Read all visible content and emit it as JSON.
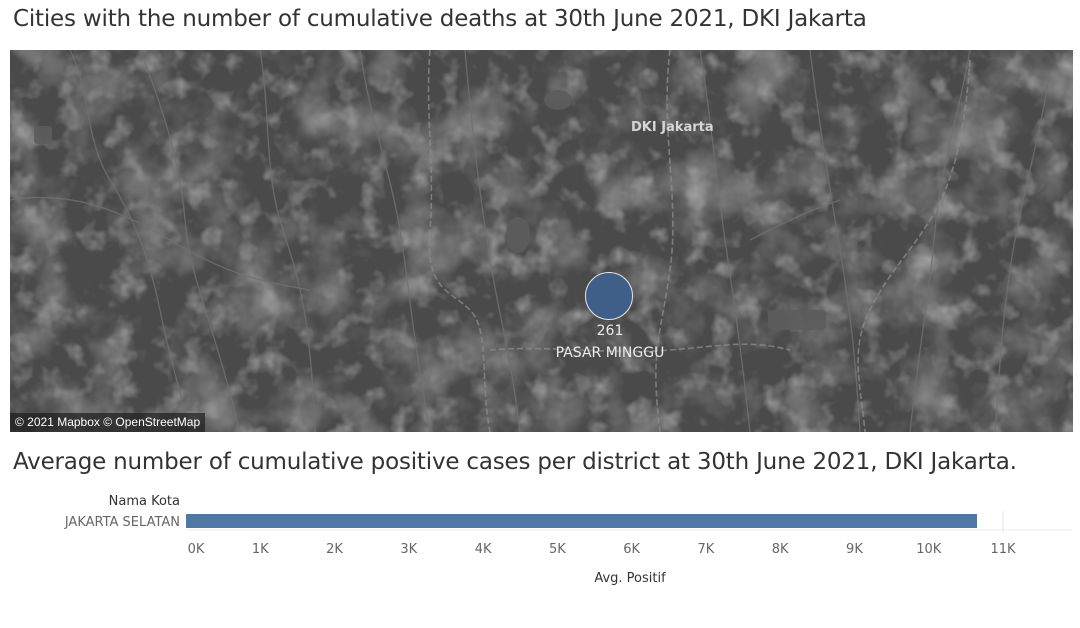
{
  "map_panel": {
    "title": "Cities with the number of cumulative deaths at 30th June 2021, DKI Jakarta",
    "region_label": "DKI Jakarta",
    "attribution": "© 2021 Mapbox © OpenStreetMap",
    "background_color": "#4a4a4a",
    "marker": {
      "value": "261",
      "name": "PASAR MINGGU",
      "color": "#3f5f88"
    }
  },
  "bar_panel": {
    "title": "Average number of cumulative positive cases per district at 30th June 2021, DKI Jakarta."
  },
  "chart_data": {
    "type": "bar",
    "orientation": "horizontal",
    "category_header": "Nama Kota",
    "categories": [
      "JAKARTA SELATAN"
    ],
    "values": [
      10650
    ],
    "xlabel": "Avg. Positif",
    "xlim": [
      0,
      11000
    ],
    "ticks": [
      0,
      1000,
      2000,
      3000,
      4000,
      5000,
      6000,
      7000,
      8000,
      9000,
      10000,
      11000
    ],
    "tick_labels": [
      "0K",
      "1K",
      "2K",
      "3K",
      "4K",
      "5K",
      "6K",
      "7K",
      "8K",
      "9K",
      "10K",
      "11K"
    ],
    "bar_color": "#4e79a7",
    "grid": false
  }
}
